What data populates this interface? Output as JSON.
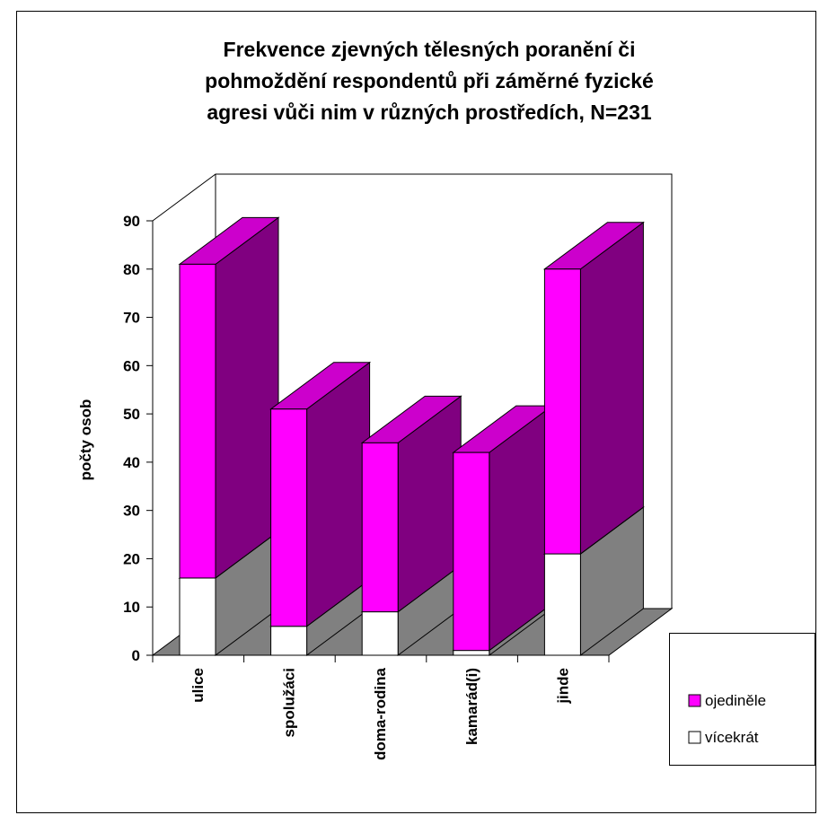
{
  "chart_data": {
    "type": "bar3d_stacked",
    "title": [
      "Frekvence zjevných tělesných poranění či",
      "pohmoždění respondentů při záměrné fyzické",
      "agresi  vůči nim v různých prostředích, N=231"
    ],
    "ylabel": "počty osob",
    "categories": [
      "ulice",
      "spolužáci",
      "doma-rodina",
      "kamarád(i)",
      "jinde"
    ],
    "series": [
      {
        "name": "vícekrát",
        "color": "#ffffff",
        "side_color": "#808080",
        "top_color": "#c0c0c0",
        "values": [
          16,
          6,
          9,
          1,
          21
        ]
      },
      {
        "name": "ojediněle",
        "color": "#ff00ff",
        "side_color": "#800080",
        "top_color": "#cc00cc",
        "values": [
          65,
          45,
          35,
          41,
          59
        ]
      }
    ],
    "ylim": [
      0,
      90
    ],
    "yticks": [
      0,
      10,
      20,
      30,
      40,
      50,
      60,
      70,
      80,
      90
    ],
    "legend": "right"
  }
}
